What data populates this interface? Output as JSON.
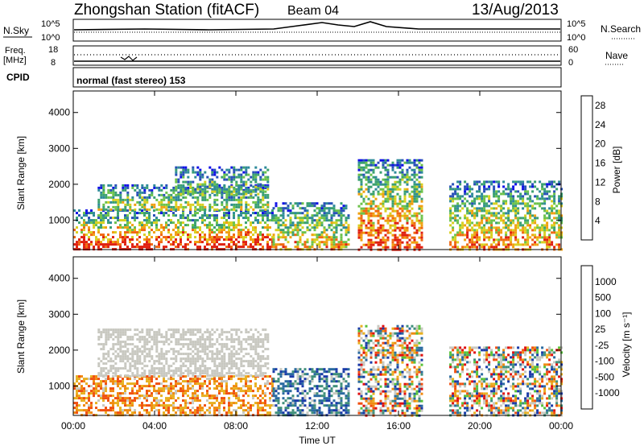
{
  "header": {
    "station": "Zhongshan Station (fitACF)",
    "beam": "Beam 04",
    "date": "13/Aug/2013"
  },
  "status_panels": {
    "nsky_label": "N.Sky",
    "nsky_ticks": [
      "10^5",
      "10^0"
    ],
    "nsearch_label": "N.Search",
    "nsearch_ticks": [
      "10^5",
      "10^0"
    ],
    "freq_label": "Freq.",
    "freq_unit": "[MHz]",
    "freq_ticks": [
      "18",
      "8"
    ],
    "nave_label": "Nave",
    "nave_ticks": [
      "60",
      "0"
    ],
    "cpid_label": "CPID",
    "cpid_text": "normal (fast stereo) 153"
  },
  "colors": {
    "power": [
      "#1010e6",
      "#2850b8",
      "#2e8a9a",
      "#3aa070",
      "#6cc24a",
      "#d8d020",
      "#f0a010",
      "#f06810",
      "#e02010"
    ],
    "velocity": [
      "#1a3aa8",
      "#2a6aa0",
      "#3f8f7a",
      "#58c23a",
      "#c8c8c0",
      "#e8b020",
      "#f08a10",
      "#f05010",
      "#e01010"
    ]
  },
  "chart_data": [
    {
      "type": "heatmap",
      "name": "power",
      "title": "",
      "xlabel": "",
      "ylabel": "Slant Range [km]",
      "x_ticks": [
        "00:00",
        "04:00",
        "08:00",
        "12:00",
        "16:00",
        "20:00",
        "00:00"
      ],
      "xlim_hours": [
        0,
        24
      ],
      "y_ticks": [
        1000,
        2000,
        3000,
        4000
      ],
      "ylim": [
        180,
        4600
      ],
      "colorbar": {
        "label": "Power [dB]",
        "ticks": [
          "4",
          "8",
          "12",
          "16",
          "20",
          "24",
          "28"
        ],
        "range": [
          0,
          30
        ]
      },
      "regions": [
        {
          "x": [
            0.0,
            9.8
          ],
          "y": [
            200,
            1300
          ],
          "level": 0.85
        },
        {
          "x": [
            1.2,
            9.6
          ],
          "y": [
            1300,
            2000
          ],
          "level": 0.35
        },
        {
          "x": [
            5.0,
            9.6
          ],
          "y": [
            1700,
            2500
          ],
          "level": 0.25
        },
        {
          "x": [
            9.8,
            13.5
          ],
          "y": [
            200,
            1500
          ],
          "level": 0.55
        },
        {
          "x": [
            14.0,
            17.2
          ],
          "y": [
            200,
            2700
          ],
          "level": 0.75
        },
        {
          "x": [
            18.5,
            24.0
          ],
          "y": [
            200,
            2100
          ],
          "level": 0.6
        }
      ]
    },
    {
      "type": "heatmap",
      "name": "velocity",
      "title": "",
      "xlabel": "Time UT",
      "ylabel": "Slant Range [km]",
      "x_ticks": [
        "00:00",
        "04:00",
        "08:00",
        "12:00",
        "16:00",
        "20:00",
        "00:00"
      ],
      "xlim_hours": [
        0,
        24
      ],
      "y_ticks": [
        1000,
        2000,
        3000,
        4000
      ],
      "ylim": [
        180,
        4600
      ],
      "colorbar": {
        "label": "Velocity [m s⁻¹]",
        "ticks": [
          "1000",
          "500",
          "100",
          "25",
          "-25",
          "-100",
          "-500",
          "-1000"
        ],
        "range": [
          1000,
          -1000
        ]
      },
      "regions": [
        {
          "x": [
            0.0,
            9.8
          ],
          "y": [
            200,
            1300
          ],
          "level": "toward"
        },
        {
          "x": [
            1.2,
            9.6
          ],
          "y": [
            1300,
            2600
          ],
          "level": "ground"
        },
        {
          "x": [
            9.8,
            13.5
          ],
          "y": [
            200,
            1500
          ],
          "level": "away"
        },
        {
          "x": [
            14.0,
            17.2
          ],
          "y": [
            200,
            2700
          ],
          "level": "mixed"
        },
        {
          "x": [
            18.5,
            24.0
          ],
          "y": [
            200,
            2100
          ],
          "level": "mixed"
        }
      ]
    }
  ]
}
